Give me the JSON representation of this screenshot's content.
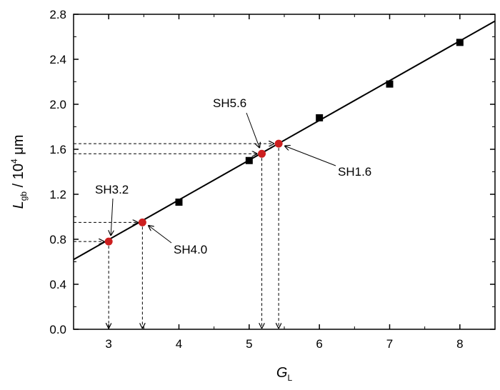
{
  "chart_data": {
    "type": "scatter",
    "title": "",
    "xlabel": {
      "main": "G",
      "sub": "L"
    },
    "ylabel": {
      "main": "L",
      "sub": "gb",
      "mid": " / 10",
      "sup": "4",
      "unit": " μm"
    },
    "xlim": [
      2.5,
      8.5
    ],
    "ylim": [
      0.0,
      2.8
    ],
    "xticks": [
      "3",
      "4",
      "5",
      "6",
      "7",
      "8"
    ],
    "yticks": [
      "0.0",
      "0.4",
      "0.8",
      "1.2",
      "1.6",
      "2.0",
      "2.4",
      "2.8"
    ],
    "grid": false,
    "series": [
      {
        "marker": "square",
        "color": "#000000",
        "x": [
          4,
          5,
          6,
          7,
          8
        ],
        "y": [
          1.13,
          1.5,
          1.88,
          2.18,
          2.55
        ]
      },
      {
        "marker": "circle",
        "color": "#cc1f1f",
        "x": [
          3.0,
          3.48,
          5.18,
          5.42
        ],
        "y": [
          0.78,
          0.95,
          1.56,
          1.65
        ]
      }
    ],
    "fit_line": {
      "x": [
        2.5,
        8.5
      ],
      "y": [
        0.62,
        2.74
      ]
    },
    "annotations": [
      {
        "label": "SH3.2",
        "x": 3.0,
        "y": 0.78
      },
      {
        "label": "SH4.0",
        "x": 3.48,
        "y": 0.95
      },
      {
        "label": "SH5.6",
        "x": 5.18,
        "y": 1.56
      },
      {
        "label": "SH1.6",
        "x": 5.42,
        "y": 1.65
      }
    ]
  }
}
